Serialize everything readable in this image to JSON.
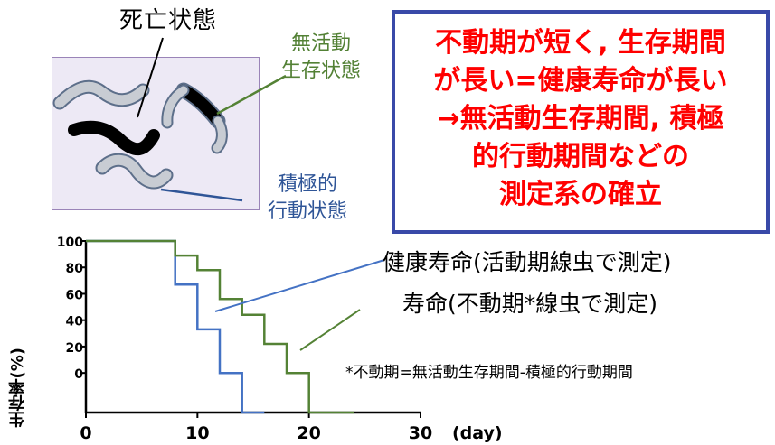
{
  "labels": {
    "dead": "死亡状態",
    "inactive_line1": "無活動",
    "inactive_line2": "生存状態",
    "active_line1": "積極的",
    "active_line2": "行動状態"
  },
  "callout": {
    "lines": [
      "不動期が短く, 生存期間",
      "が長い=健康寿命が長い",
      "→無活動生存期間, 積極",
      "的行動期間などの",
      "測定系の確立"
    ]
  },
  "chart_data": {
    "type": "line",
    "step": true,
    "xlabel": "(day)",
    "ylabel": "生存率(%)",
    "xlim": [
      0,
      30
    ],
    "ylim": [
      -30,
      100
    ],
    "xticks": [
      0,
      10,
      20,
      30
    ],
    "yticks": [
      100,
      80,
      60,
      40,
      20,
      0
    ],
    "series": [
      {
        "name": "健康寿命(活動期線虫で測定)",
        "color": "#4472c4",
        "points": [
          [
            0,
            100
          ],
          [
            8,
            100
          ],
          [
            8,
            67
          ],
          [
            10,
            67
          ],
          [
            10,
            33
          ],
          [
            12,
            33
          ],
          [
            12,
            0
          ],
          [
            14,
            0
          ],
          [
            14,
            -30
          ],
          [
            16,
            -30
          ]
        ]
      },
      {
        "name": "寿命(不動期*線虫で測定)",
        "color": "#548235",
        "points": [
          [
            0,
            100
          ],
          [
            8,
            100
          ],
          [
            8,
            89
          ],
          [
            10,
            89
          ],
          [
            10,
            78
          ],
          [
            12,
            78
          ],
          [
            12,
            56
          ],
          [
            14,
            56
          ],
          [
            14,
            44
          ],
          [
            16,
            44
          ],
          [
            16,
            22
          ],
          [
            18,
            22
          ],
          [
            18,
            0
          ],
          [
            20,
            0
          ],
          [
            20,
            -30
          ],
          [
            24,
            -30
          ]
        ]
      }
    ],
    "annotations": [
      "健康寿命(活動期線虫で測定)",
      "寿命(不動期*線虫で測定)",
      "*不動期=無活動生存期間-積極的行動期間"
    ]
  },
  "colors": {
    "callout_text": "#ff0000",
    "callout_border": "#3949a8",
    "green": "#548235",
    "blue": "#4472c4"
  }
}
